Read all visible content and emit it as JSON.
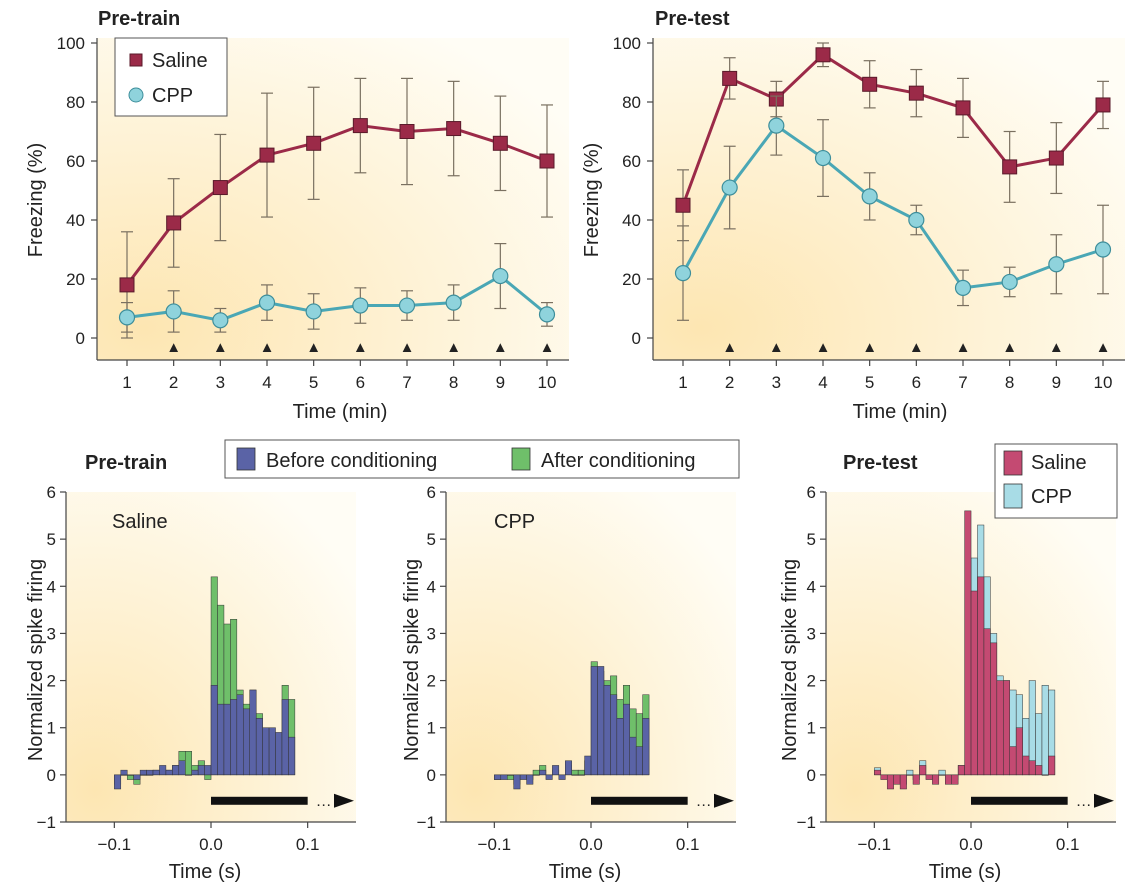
{
  "colors": {
    "saline": "#9b2a48",
    "saline_light": "#c44a72",
    "cpp": "#8fd3dc",
    "cpp_dark": "#4aa7b5",
    "before": "#5a63a6",
    "after": "#6fbf6a",
    "bg_start": "#fde6b2",
    "bg_end": "#fffdf5"
  },
  "chart_data": [
    {
      "type": "line",
      "title": "Pre-train",
      "xlabel": "Time (min)",
      "ylabel": "Freezing (%)",
      "x": [
        1,
        2,
        3,
        4,
        5,
        6,
        7,
        8,
        9,
        10
      ],
      "xticks": [
        "1",
        "2",
        "3",
        "4",
        "5",
        "6",
        "7",
        "8",
        "9",
        "10"
      ],
      "yticks": [
        "0",
        "20",
        "40",
        "60",
        "80",
        "100"
      ],
      "ylim": [
        0,
        100
      ],
      "legend": "top-left",
      "markers_label": "▲",
      "series": [
        {
          "name": "Saline",
          "values": [
            18,
            39,
            51,
            62,
            66,
            72,
            70,
            71,
            66,
            60
          ],
          "err": [
            18,
            15,
            18,
            21,
            19,
            16,
            18,
            16,
            16,
            19
          ]
        },
        {
          "name": "CPP",
          "values": [
            7,
            9,
            6,
            12,
            9,
            11,
            11,
            12,
            21,
            8
          ],
          "err": [
            5,
            7,
            4,
            6,
            6,
            6,
            5,
            6,
            11,
            4
          ]
        }
      ],
      "arrows_at": [
        2,
        3,
        4,
        5,
        6,
        7,
        8,
        9,
        10
      ]
    },
    {
      "type": "line",
      "title": "Pre-test",
      "xlabel": "Time (min)",
      "ylabel": "Freezing (%)",
      "x": [
        1,
        2,
        3,
        4,
        5,
        6,
        7,
        8,
        9,
        10
      ],
      "xticks": [
        "1",
        "2",
        "3",
        "4",
        "5",
        "6",
        "7",
        "8",
        "9",
        "10"
      ],
      "yticks": [
        "0",
        "20",
        "40",
        "60",
        "80",
        "100"
      ],
      "ylim": [
        0,
        100
      ],
      "markers_label": "▲",
      "series": [
        {
          "name": "",
          "values": [
            45,
            88,
            81,
            96,
            86,
            83,
            78,
            58,
            61,
            79
          ],
          "err": [
            12,
            7,
            6,
            4,
            8,
            8,
            10,
            12,
            12,
            8
          ]
        },
        {
          "name": "",
          "values": [
            22,
            51,
            72,
            61,
            48,
            40,
            17,
            19,
            25,
            30
          ],
          "err": [
            16,
            14,
            10,
            13,
            8,
            5,
            6,
            5,
            10,
            15
          ]
        }
      ],
      "arrows_at": [
        2,
        3,
        4,
        5,
        6,
        7,
        8,
        9,
        10
      ]
    },
    {
      "type": "bar",
      "title": "Pre-train",
      "subtitle": "Saline",
      "xlabel": "Time (s)",
      "ylabel": "Normalized spike firing",
      "xlim": [
        -0.15,
        0.15
      ],
      "ylim": [
        -1,
        6
      ],
      "xticks": [
        "−0.1",
        "0.0",
        "0.1"
      ],
      "yticks": [
        "−1",
        "0",
        "1",
        "2",
        "3",
        "4",
        "5",
        "6"
      ],
      "legend": "top-center",
      "bin_width": 0.00667,
      "x_start": -0.1,
      "series": [
        {
          "name": "Before conditioning",
          "values": [
            -0.3,
            0.1,
            0.0,
            -0.1,
            0.1,
            0.1,
            0.1,
            0.2,
            0.1,
            0.2,
            0.3,
            0.0,
            0.1,
            0.2,
            0.2,
            1.9,
            1.5,
            1.5,
            1.6,
            1.7,
            1.4,
            1.8,
            1.2,
            1.0,
            1.0,
            0.9,
            1.6,
            0.8
          ]
        },
        {
          "name": "After conditioning",
          "values": [
            -0.2,
            0.0,
            -0.1,
            -0.2,
            0.0,
            0.0,
            0.1,
            0.1,
            0.1,
            0.2,
            0.5,
            0.5,
            0.2,
            0.3,
            -0.1,
            4.2,
            3.6,
            3.2,
            3.3,
            1.8,
            1.5,
            1.8,
            1.3,
            0.7,
            0.7,
            0.6,
            1.9,
            1.6
          ]
        }
      ],
      "stimulus_bar": [
        0.0,
        0.1
      ]
    },
    {
      "type": "bar",
      "subtitle": "CPP",
      "xlabel": "Time (s)",
      "ylabel": "Normalized spike firing",
      "xlim": [
        -0.15,
        0.15
      ],
      "ylim": [
        -1,
        6
      ],
      "xticks": [
        "−0.1",
        "0.0",
        "0.1"
      ],
      "yticks": [
        "−1",
        "0",
        "1",
        "2",
        "3",
        "4",
        "5",
        "6"
      ],
      "bin_width": 0.00667,
      "x_start": -0.1,
      "series": [
        {
          "name": "Before conditioning",
          "values": [
            -0.1,
            -0.1,
            0.0,
            -0.3,
            -0.1,
            -0.2,
            0.0,
            0.1,
            -0.1,
            0.2,
            -0.1,
            0.3,
            0.0,
            0.0,
            0.4,
            2.3,
            2.3,
            1.9,
            1.7,
            1.2,
            1.5,
            0.8,
            0.6,
            1.2
          ]
        },
        {
          "name": "After conditioning",
          "values": [
            -0.1,
            0.0,
            -0.1,
            -0.2,
            0.0,
            -0.1,
            0.1,
            0.2,
            0.0,
            0.1,
            0.0,
            0.2,
            0.1,
            0.1,
            0.3,
            2.4,
            2.2,
            2.0,
            2.1,
            1.6,
            1.9,
            1.4,
            1.3,
            1.7
          ]
        }
      ],
      "stimulus_bar": [
        0.0,
        0.1
      ]
    },
    {
      "type": "bar",
      "title": "Pre-test",
      "xlabel": "Time (s)",
      "ylabel": "Normalized spike firing",
      "xlim": [
        -0.15,
        0.15
      ],
      "ylim": [
        -1,
        6
      ],
      "xticks": [
        "−0.1",
        "0.0",
        "0.1"
      ],
      "yticks": [
        "−1",
        "0",
        "1",
        "2",
        "3",
        "4",
        "5",
        "6"
      ],
      "legend": "top-right",
      "bin_width": 0.00667,
      "x_start": -0.1,
      "series": [
        {
          "name": "Saline",
          "values": [
            0.1,
            -0.1,
            -0.3,
            -0.2,
            -0.3,
            0.0,
            -0.2,
            0.2,
            -0.1,
            -0.2,
            0.0,
            -0.2,
            -0.2,
            0.2,
            5.6,
            3.9,
            4.2,
            3.1,
            2.8,
            2.0,
            2.0,
            0.6,
            1.0,
            0.4,
            0.3,
            0.2,
            0.0,
            0.4
          ]
        },
        {
          "name": "CPP",
          "values": [
            0.15,
            0.0,
            -0.1,
            -0.1,
            -0.2,
            0.1,
            -0.1,
            0.3,
            0.0,
            0.0,
            0.1,
            0.0,
            -0.1,
            0.2,
            0.1,
            4.6,
            5.3,
            4.2,
            3.0,
            2.1,
            2.0,
            1.8,
            1.7,
            1.2,
            2.0,
            1.3,
            1.9,
            1.8
          ]
        }
      ],
      "stimulus_bar": [
        0.0,
        0.1
      ]
    }
  ],
  "legends": {
    "top_left": [
      {
        "label": "Saline",
        "series": "saline"
      },
      {
        "label": "CPP",
        "series": "cpp"
      }
    ],
    "middle": [
      {
        "label": "Before conditioning",
        "series": "before"
      },
      {
        "label": "After conditioning",
        "series": "after"
      }
    ],
    "bottom_right": [
      {
        "label": "Saline",
        "series": "saline"
      },
      {
        "label": "CPP",
        "series": "cpp"
      }
    ]
  },
  "ellipsis": "…"
}
